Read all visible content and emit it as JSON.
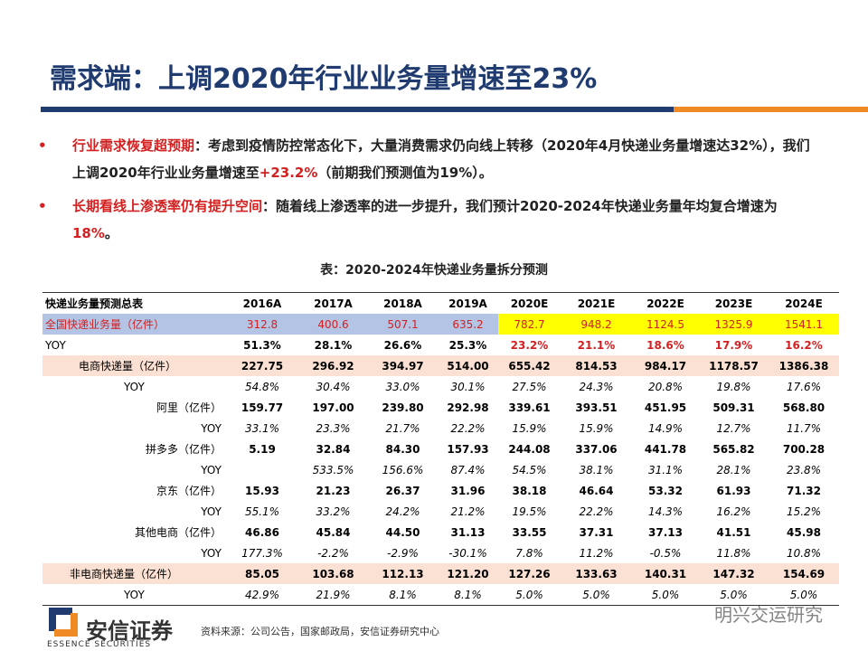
{
  "header": {
    "title": "需求端：上调2020年行业业务量增速至23%"
  },
  "bullets": [
    {
      "lead": "行业需求恢复超预期",
      "text": "：考虑到疫情防控常态化下，大量消费需求仍向线上转移（2020年4月快递业务量增速达32%），我们上调2020年行业业务量增速至",
      "highlight": "+23.2%",
      "tail": "（前期我们预测值为19%）。"
    },
    {
      "lead": "长期看线上渗透率仍有提升空间",
      "text": "：随着线上渗透率的进一步提升，我们预计2020-2024年快递业务量年均复合增速为",
      "highlight": "18%",
      "tail": "。"
    }
  ],
  "table": {
    "caption": "表：2020-2024年快递业务量拆分预测",
    "header": [
      "快递业务量预测总表",
      "2016A",
      "2017A",
      "2018A",
      "2019A",
      "2020E",
      "2021E",
      "2022E",
      "2023E",
      "2024E"
    ],
    "rows": [
      [
        "全国快递业务量（亿件）",
        "312.8",
        "400.6",
        "507.1",
        "635.2",
        "782.7",
        "948.2",
        "1124.5",
        "1325.9",
        "1541.1"
      ],
      [
        "YOY",
        "51.3%",
        "28.1%",
        "26.6%",
        "25.3%",
        "23.2%",
        "21.1%",
        "18.6%",
        "17.9%",
        "16.2%"
      ],
      [
        "电商快递量（亿件）",
        "227.75",
        "296.92",
        "394.97",
        "514.00",
        "655.42",
        "814.53",
        "984.17",
        "1178.57",
        "1386.38"
      ],
      [
        "YOY",
        "54.8%",
        "30.4%",
        "33.0%",
        "30.1%",
        "27.5%",
        "24.3%",
        "20.8%",
        "19.8%",
        "17.6%"
      ],
      [
        "阿里（亿件）",
        "159.77",
        "197.00",
        "239.80",
        "292.98",
        "339.61",
        "393.51",
        "451.95",
        "509.31",
        "568.80"
      ],
      [
        "YOY",
        "33.1%",
        "23.3%",
        "21.7%",
        "22.2%",
        "15.9%",
        "15.9%",
        "14.9%",
        "12.7%",
        "11.7%"
      ],
      [
        "拼多多（亿件）",
        "5.19",
        "32.84",
        "84.30",
        "157.93",
        "244.08",
        "337.06",
        "441.78",
        "565.82",
        "700.28"
      ],
      [
        "YOY",
        null,
        "533.5%",
        "156.6%",
        "87.4%",
        "54.5%",
        "38.1%",
        "31.1%",
        "28.1%",
        "23.8%"
      ],
      [
        "京东（亿件）",
        "15.93",
        "21.23",
        "26.37",
        "31.96",
        "38.18",
        "46.64",
        "53.32",
        "61.93",
        "71.32"
      ],
      [
        "YOY",
        "55.1%",
        "33.2%",
        "24.2%",
        "21.2%",
        "19.5%",
        "22.2%",
        "14.3%",
        "16.2%",
        "15.2%"
      ],
      [
        "其他电商（亿件）",
        "46.86",
        "45.84",
        "44.50",
        "31.13",
        "33.55",
        "37.31",
        "37.13",
        "41.51",
        "45.98"
      ],
      [
        "YOY",
        "177.3%",
        "-2.2%",
        "-2.9%",
        "-30.1%",
        "7.8%",
        "11.2%",
        "-0.5%",
        "11.8%",
        "10.8%"
      ],
      [
        "非电商快递量（亿件）",
        "85.05",
        "103.68",
        "112.13",
        "121.20",
        "127.26",
        "133.63",
        "140.31",
        "147.32",
        "154.69"
      ],
      [
        "YOY",
        "42.9%",
        "21.9%",
        "8.1%",
        "8.1%",
        "5.0%",
        "5.0%",
        "5.0%",
        "5.0%",
        "5.0%"
      ]
    ]
  },
  "footer": {
    "logo": "安信证券",
    "logo_en": "ESSENCE SECURITIES",
    "source": "资料来源：公司公告，国家邮政局，安信证券研究中心",
    "watermark": "明兴交运研究"
  }
}
